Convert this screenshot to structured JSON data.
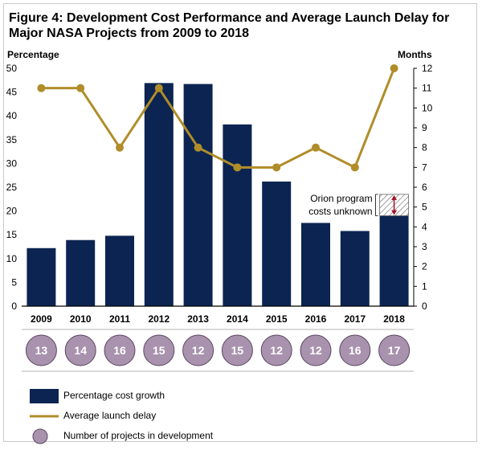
{
  "title": "Figure 4: Development Cost Performance and Average Launch Delay for Major NASA Projects from 2009 to 2018",
  "colors": {
    "bar": "#0c2451",
    "line": "#b08d29",
    "circle": "#a892ad",
    "circle_stroke": "#5b4662",
    "hatch": "#444444",
    "arrow": "#a3122b"
  },
  "chart_data": {
    "type": "bar+line",
    "categories": [
      "2009",
      "2010",
      "2011",
      "2012",
      "2013",
      "2014",
      "2015",
      "2016",
      "2017",
      "2018"
    ],
    "series": [
      {
        "name": "Percentage cost growth",
        "axis": "left",
        "type": "bar",
        "values": [
          12.2,
          13.9,
          14.8,
          46.9,
          46.7,
          38.2,
          26.2,
          17.5,
          15.8,
          19.0
        ]
      },
      {
        "name": "Average launch delay",
        "axis": "right",
        "type": "line",
        "values": [
          11,
          11,
          8,
          11,
          8,
          7,
          7,
          8,
          7,
          12
        ]
      },
      {
        "name": "Number of projects in development",
        "type": "circles",
        "values": [
          13,
          14,
          16,
          15,
          12,
          15,
          12,
          12,
          16,
          17
        ]
      }
    ],
    "left_axis": {
      "label": "Percentage",
      "ylim": [
        0,
        50
      ],
      "ticks": [
        "0",
        "5",
        "10",
        "15",
        "20",
        "25",
        "30",
        "35",
        "40",
        "45",
        "50"
      ]
    },
    "right_axis": {
      "label": "Months",
      "ylim": [
        0,
        12
      ],
      "ticks": [
        "0",
        "1",
        "2",
        "3",
        "4",
        "5",
        "6",
        "7",
        "8",
        "9",
        "10",
        "11",
        "12"
      ]
    },
    "annotation": {
      "text_lines": [
        "Orion program",
        "costs unknown"
      ],
      "category": "2018",
      "range": [
        19.0,
        23.5
      ]
    }
  },
  "legend": [
    {
      "key": "bar",
      "label": "Percentage cost growth"
    },
    {
      "key": "line",
      "label": "Average launch delay"
    },
    {
      "key": "circle",
      "label": "Number of projects in development"
    }
  ]
}
